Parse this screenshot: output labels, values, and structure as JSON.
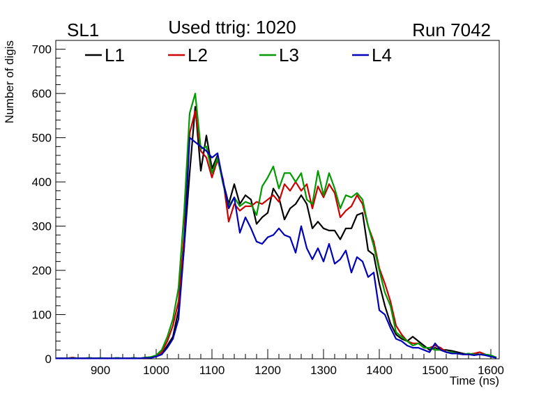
{
  "chart_data": {
    "type": "line",
    "title": "Used ttrig: 1020",
    "label_left": "SL1",
    "label_right": "Run 7042",
    "xlabel": "Time (ns)",
    "ylabel": "Number of digis",
    "xlim": [
      820,
      1615
    ],
    "ylim": [
      0,
      720
    ],
    "xticks_major": [
      900,
      1000,
      1100,
      1200,
      1300,
      1400,
      1500,
      1600
    ],
    "yticks_major": [
      0,
      100,
      200,
      300,
      400,
      500,
      600,
      700
    ],
    "legend_placement": "top",
    "x": [
      820,
      830,
      840,
      850,
      860,
      870,
      880,
      890,
      900,
      910,
      920,
      930,
      940,
      950,
      960,
      970,
      980,
      990,
      1000,
      1010,
      1020,
      1030,
      1040,
      1050,
      1060,
      1070,
      1080,
      1090,
      1100,
      1110,
      1120,
      1130,
      1140,
      1150,
      1160,
      1170,
      1180,
      1190,
      1200,
      1210,
      1220,
      1230,
      1240,
      1250,
      1260,
      1270,
      1280,
      1290,
      1300,
      1310,
      1320,
      1330,
      1340,
      1350,
      1360,
      1370,
      1380,
      1390,
      1400,
      1410,
      1420,
      1430,
      1440,
      1450,
      1460,
      1470,
      1480,
      1490,
      1500,
      1510,
      1520,
      1530,
      1540,
      1550,
      1560,
      1570,
      1580,
      1590,
      1600,
      1610
    ],
    "series": [
      {
        "name": "L1",
        "color": "#000000",
        "values": [
          1,
          1,
          1,
          2,
          1,
          1,
          2,
          1,
          1,
          1,
          1,
          2,
          1,
          1,
          2,
          1,
          2,
          3,
          6,
          10,
          30,
          50,
          110,
          250,
          420,
          570,
          425,
          505,
          430,
          460,
          400,
          350,
          395,
          350,
          370,
          360,
          305,
          320,
          330,
          385,
          365,
          315,
          340,
          350,
          370,
          350,
          295,
          310,
          295,
          290,
          290,
          270,
          295,
          295,
          325,
          330,
          245,
          235,
          170,
          120,
          80,
          55,
          45,
          40,
          50,
          40,
          30,
          20,
          25,
          20,
          20,
          18,
          15,
          12,
          10,
          12,
          10,
          10,
          5,
          3
        ]
      },
      {
        "name": "L2",
        "color": "#cc0000",
        "values": [
          1,
          1,
          1,
          3,
          1,
          1,
          1,
          1,
          1,
          1,
          1,
          1,
          1,
          1,
          1,
          1,
          2,
          3,
          6,
          15,
          40,
          75,
          130,
          275,
          510,
          560,
          470,
          455,
          410,
          450,
          405,
          310,
          350,
          335,
          345,
          345,
          355,
          350,
          360,
          370,
          355,
          395,
          380,
          400,
          380,
          395,
          340,
          390,
          365,
          395,
          375,
          320,
          335,
          345,
          370,
          350,
          300,
          265,
          205,
          170,
          130,
          75,
          55,
          40,
          35,
          35,
          25,
          25,
          30,
          25,
          15,
          15,
          12,
          10,
          10,
          12,
          15,
          10,
          5,
          3
        ]
      },
      {
        "name": "L3",
        "color": "#009900",
        "values": [
          1,
          1,
          1,
          2,
          1,
          1,
          2,
          1,
          2,
          1,
          1,
          2,
          1,
          1,
          2,
          1,
          3,
          4,
          8,
          20,
          50,
          90,
          160,
          330,
          555,
          600,
          475,
          480,
          420,
          455,
          395,
          345,
          365,
          345,
          355,
          350,
          325,
          390,
          410,
          435,
          385,
          420,
          420,
          400,
          420,
          360,
          350,
          425,
          370,
          420,
          385,
          340,
          370,
          365,
          375,
          360,
          300,
          255,
          200,
          150,
          120,
          60,
          50,
          40,
          30,
          35,
          25,
          25,
          20,
          20,
          15,
          15,
          12,
          10,
          12,
          10,
          10,
          10,
          8,
          3
        ]
      },
      {
        "name": "L4",
        "color": "#0000bb",
        "values": [
          1,
          1,
          1,
          1,
          1,
          1,
          1,
          1,
          1,
          1,
          1,
          1,
          1,
          1,
          1,
          1,
          2,
          2,
          5,
          10,
          25,
          45,
          90,
          250,
          500,
          490,
          480,
          470,
          455,
          465,
          400,
          340,
          365,
          285,
          320,
          295,
          265,
          260,
          275,
          280,
          295,
          280,
          275,
          240,
          300,
          250,
          225,
          250,
          220,
          260,
          215,
          225,
          245,
          195,
          230,
          220,
          185,
          195,
          110,
          100,
          70,
          45,
          40,
          30,
          25,
          25,
          20,
          15,
          35,
          20,
          15,
          12,
          12,
          10,
          10,
          8,
          10,
          8,
          5,
          2
        ]
      }
    ]
  }
}
